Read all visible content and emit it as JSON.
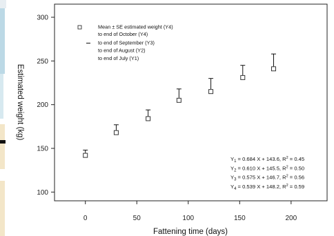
{
  "chart_data": {
    "type": "scatter",
    "xlabel": "Fattening time (days)",
    "ylabel": "Estimated weight (kg)",
    "xlim": [
      -30,
      235
    ],
    "ylim": [
      90,
      315
    ],
    "x_ticks": [
      0,
      50,
      100,
      150,
      200
    ],
    "y_ticks": [
      100,
      150,
      200,
      250,
      300
    ],
    "grid": false,
    "series": [
      {
        "name": "Mean ± SE estimated weight (Y4)",
        "x": [
          0,
          30,
          61,
          91,
          122,
          153,
          183
        ],
        "y": [
          142,
          168,
          184,
          205,
          215,
          231,
          241
        ],
        "se": [
          6,
          9,
          10,
          13,
          15,
          14,
          17
        ]
      }
    ],
    "legend": {
      "position": "top-left",
      "lines": [
        "Mean ± SE estimated weight (Y4)",
        "to end of October (Y4)",
        "to end of September (Y3)",
        "to end of August (Y2)",
        "to end of July (Y1)"
      ]
    },
    "equations": [
      {
        "sub": "1",
        "rhs": " = 0.684 X + 143.6, R",
        "sup": "2",
        "tail": " = 0.45"
      },
      {
        "sub": "2",
        "rhs": " = 0.610 X + 145.5, R",
        "sup": "2",
        "tail": " = 0.50"
      },
      {
        "sub": "3",
        "rhs": " = 0.575 X + 146.7, R",
        "sup": "2",
        "tail": " = 0.56"
      },
      {
        "sub": "4",
        "rhs": " = 0.539 X + 148.2, R",
        "sup": "2",
        "tail": " = 0.59"
      }
    ],
    "equation_prefix": "Y"
  },
  "colors": {
    "marker": "#333333",
    "axis": "#222222",
    "edge_strip": [
      "#bcd9e6",
      "#f3e6c8"
    ]
  }
}
